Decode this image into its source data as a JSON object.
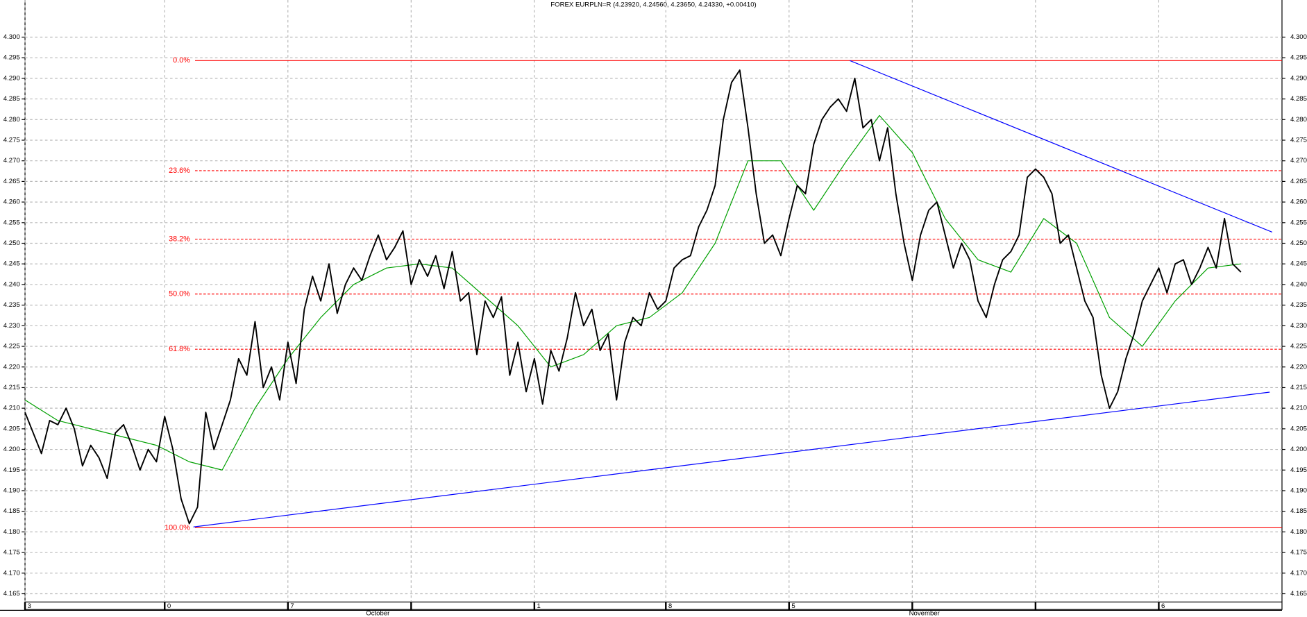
{
  "chart_data": {
    "type": "line",
    "title": "FOREX EURPLN=R (4.23920, 4.24560, 4.23650, 4.24330, +0.00410)",
    "xlim": [
      0,
      153
    ],
    "ylim": [
      4.163,
      4.309
    ],
    "grid": true,
    "yticks": [
      {
        "value": 4.165,
        "label": "4.165"
      },
      {
        "value": 4.17,
        "label": "4.170"
      },
      {
        "value": 4.175,
        "label": "4.175"
      },
      {
        "value": 4.18,
        "label": "4.180"
      },
      {
        "value": 4.185,
        "label": "4.185"
      },
      {
        "value": 4.19,
        "label": "4.190"
      },
      {
        "value": 4.195,
        "label": "4.195"
      },
      {
        "value": 4.2,
        "label": "4.200"
      },
      {
        "value": 4.205,
        "label": "4.205"
      },
      {
        "value": 4.21,
        "label": "4.210"
      },
      {
        "value": 4.215,
        "label": "4.215"
      },
      {
        "value": 4.22,
        "label": "4.220"
      },
      {
        "value": 4.225,
        "label": "4.225"
      },
      {
        "value": 4.23,
        "label": "4.230"
      },
      {
        "value": 4.235,
        "label": "4.235"
      },
      {
        "value": 4.24,
        "label": "4.240"
      },
      {
        "value": 4.245,
        "label": "4.245"
      },
      {
        "value": 4.25,
        "label": "4.250"
      },
      {
        "value": 4.255,
        "label": "4.255"
      },
      {
        "value": 4.26,
        "label": "4.260"
      },
      {
        "value": 4.265,
        "label": "4.265"
      },
      {
        "value": 4.27,
        "label": "4.270"
      },
      {
        "value": 4.275,
        "label": "4.275"
      },
      {
        "value": 4.28,
        "label": "4.280"
      },
      {
        "value": 4.285,
        "label": "4.285"
      },
      {
        "value": 4.29,
        "label": "4.290"
      },
      {
        "value": 4.295,
        "label": "4.295"
      },
      {
        "value": 4.3,
        "label": "4.300"
      }
    ],
    "xticks": [
      {
        "value": 0,
        "label": "3"
      },
      {
        "value": 17,
        "label": "0"
      },
      {
        "value": 32,
        "label": "7"
      },
      {
        "value": 62,
        "label": "1"
      },
      {
        "value": 78,
        "label": "8"
      },
      {
        "value": 93,
        "label": "5"
      },
      {
        "value": 138,
        "label": "6"
      }
    ],
    "xticks_unlabeled": [
      47,
      108,
      123
    ],
    "month_labels": [
      {
        "value": 41.5,
        "label": "October"
      },
      {
        "value": 107.6,
        "label": "November"
      }
    ],
    "series": [
      {
        "name": "EURPLN",
        "color": "#000000",
        "width": 1.6,
        "x": [
          0,
          1,
          2,
          3,
          4,
          5,
          6,
          7,
          8,
          9,
          10,
          11,
          12,
          13,
          14,
          15,
          16,
          17,
          18,
          19,
          20,
          21,
          22,
          23,
          24,
          25,
          26,
          27,
          28,
          29,
          30,
          31,
          32,
          33,
          34,
          35,
          36,
          37,
          38,
          39,
          40,
          41,
          42,
          43,
          44,
          45,
          46,
          47,
          48,
          49,
          50,
          51,
          52,
          53,
          54,
          55,
          56,
          57,
          58,
          59,
          60,
          61,
          62,
          63,
          64,
          65,
          66,
          67,
          68,
          69,
          70,
          71,
          72,
          73,
          74,
          75,
          76,
          77,
          78,
          79,
          80,
          81,
          82,
          83,
          84,
          85,
          86,
          87,
          88,
          89,
          90,
          91,
          92,
          93,
          94,
          95,
          96,
          97,
          98,
          99,
          100,
          101,
          102,
          103,
          104,
          105,
          106,
          107,
          108,
          109,
          110,
          111,
          112,
          113,
          114,
          115,
          116,
          117,
          118,
          119,
          120,
          121,
          122,
          123,
          124,
          125,
          126,
          127,
          128,
          129,
          130,
          131,
          132,
          133,
          134,
          135,
          136,
          137,
          138,
          139,
          140,
          141,
          142,
          143,
          144,
          145,
          146,
          147,
          148
        ],
        "values": [
          4.209,
          4.204,
          4.199,
          4.207,
          4.206,
          4.21,
          4.205,
          4.196,
          4.201,
          4.198,
          4.193,
          4.204,
          4.206,
          4.201,
          4.195,
          4.2,
          4.197,
          4.208,
          4.2,
          4.188,
          4.182,
          4.186,
          4.209,
          4.2,
          4.206,
          4.212,
          4.222,
          4.218,
          4.231,
          4.215,
          4.22,
          4.212,
          4.226,
          4.216,
          4.234,
          4.242,
          4.236,
          4.245,
          4.233,
          4.24,
          4.244,
          4.241,
          4.247,
          4.252,
          4.246,
          4.249,
          4.253,
          4.24,
          4.246,
          4.242,
          4.247,
          4.239,
          4.248,
          4.236,
          4.238,
          4.223,
          4.236,
          4.232,
          4.237,
          4.218,
          4.226,
          4.214,
          4.222,
          4.211,
          4.224,
          4.219,
          4.227,
          4.238,
          4.23,
          4.234,
          4.224,
          4.228,
          4.212,
          4.226,
          4.232,
          4.23,
          4.238,
          4.234,
          4.236,
          4.244,
          4.246,
          4.247,
          4.254,
          4.258,
          4.264,
          4.28,
          4.289,
          4.292,
          4.278,
          4.262,
          4.25,
          4.252,
          4.247,
          4.256,
          4.264,
          4.262,
          4.274,
          4.28,
          4.283,
          4.285,
          4.282,
          4.29,
          4.278,
          4.28,
          4.27,
          4.278,
          4.262,
          4.25,
          4.241,
          4.252,
          4.258,
          4.26,
          4.252,
          4.244,
          4.25,
          4.246,
          4.236,
          4.232,
          4.24,
          4.246,
          4.248,
          4.252,
          4.266,
          4.268,
          4.266,
          4.262,
          4.25,
          4.252,
          4.244,
          4.236,
          4.232,
          4.218,
          4.21,
          4.214,
          4.222,
          4.228,
          4.236,
          4.24,
          4.244,
          4.238,
          4.245,
          4.246,
          4.24,
          4.244,
          4.249,
          4.244,
          4.256,
          4.245,
          4.243
        ]
      },
      {
        "name": "MA",
        "color": "#00a000",
        "width": 1,
        "x": [
          0,
          4,
          8,
          12,
          16,
          20,
          24,
          28,
          32,
          36,
          40,
          44,
          48,
          52,
          56,
          60,
          64,
          68,
          72,
          76,
          80,
          84,
          88,
          92,
          96,
          100,
          104,
          108,
          112,
          116,
          120,
          124,
          128,
          132,
          136,
          140,
          144,
          148
        ],
        "values": [
          4.212,
          4.207,
          4.205,
          4.203,
          4.201,
          4.197,
          4.195,
          4.21,
          4.222,
          4.232,
          4.24,
          4.244,
          4.245,
          4.244,
          4.237,
          4.23,
          4.22,
          4.223,
          4.23,
          4.232,
          4.238,
          4.25,
          4.27,
          4.27,
          4.258,
          4.27,
          4.281,
          4.272,
          4.256,
          4.246,
          4.243,
          4.256,
          4.25,
          4.232,
          4.225,
          4.236,
          4.244,
          4.245
        ]
      }
    ],
    "trendlines": [
      {
        "color": "#0000ff",
        "x": [
          100.4,
          151.8
        ],
        "values": [
          4.2943,
          4.2527
        ]
      },
      {
        "color": "#0000ff",
        "x": [
          20.5,
          151.5
        ],
        "values": [
          4.1812,
          4.2139
        ]
      }
    ],
    "fib_color": "#ff0000",
    "fib_levels": [
      {
        "label": "0.0%",
        "price": 4.2943,
        "dashed": false
      },
      {
        "label": "23.6%",
        "price": 4.2676,
        "dashed": true
      },
      {
        "label": "38.2%",
        "price": 4.251,
        "dashed": true
      },
      {
        "label": "50.0%",
        "price": 4.2377,
        "dashed": true
      },
      {
        "label": "61.8%",
        "price": 4.2243,
        "dashed": true
      },
      {
        "label": "100.0%",
        "price": 4.181,
        "dashed": false
      }
    ]
  }
}
